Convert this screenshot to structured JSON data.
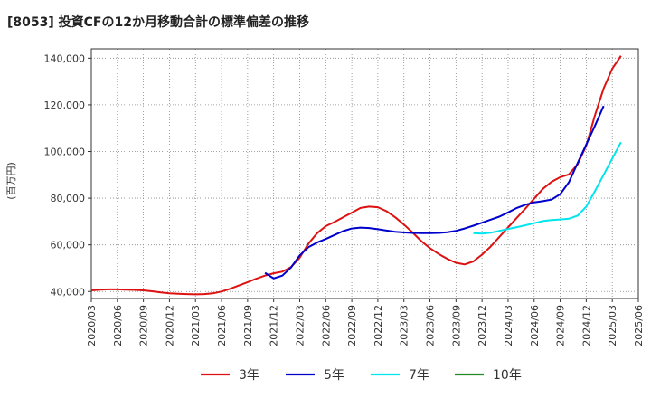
{
  "chart_data": {
    "type": "line",
    "title": "[8053]  投資CFの12か月移動合計の標準偏差の推移",
    "ylabel": "(百万円)",
    "xlabel": "",
    "ylim": [
      37000,
      144000
    ],
    "yticks": [
      40000,
      60000,
      80000,
      100000,
      120000,
      140000
    ],
    "ytick_labels": [
      "40,000",
      "60,000",
      "80,000",
      "100,000",
      "120,000",
      "140,000"
    ],
    "xtick_labels": [
      "2020/03",
      "2020/06",
      "2020/09",
      "2020/12",
      "2021/03",
      "2021/06",
      "2021/09",
      "2021/12",
      "2022/03",
      "2022/06",
      "2022/09",
      "2022/12",
      "2023/03",
      "2023/06",
      "2023/09",
      "2023/12",
      "2024/03",
      "2024/06",
      "2024/09",
      "2024/12",
      "2025/03",
      "2025/06"
    ],
    "x_start": "2020/03",
    "grid": true,
    "legend_position": "bottom",
    "series": [
      {
        "name": "3年",
        "color": "#dd1111",
        "start": "2020/03",
        "values": [
          40500,
          40800,
          40900,
          40900,
          40800,
          40700,
          40500,
          40100,
          39600,
          39200,
          39000,
          38900,
          38800,
          38900,
          39200,
          40000,
          41200,
          42600,
          44000,
          45500,
          46800,
          47800,
          48500,
          50500,
          54500,
          60500,
          65000,
          68000,
          69800,
          71800,
          73800,
          75800,
          76400,
          76100,
          74400,
          71800,
          68700,
          65300,
          61600,
          58600,
          56100,
          54000,
          52300,
          51600,
          52900,
          55800,
          59300,
          63400,
          67500,
          71600,
          75600,
          79800,
          84000,
          87000,
          89000,
          90200,
          94500,
          102500,
          115500,
          127000,
          135500,
          141000
        ]
      },
      {
        "name": "5年",
        "color": "#0000cc",
        "start": "2021/11",
        "values": [
          48000,
          45600,
          46800,
          50300,
          55500,
          59000,
          61000,
          62500,
          64200,
          65900,
          67000,
          67400,
          67200,
          66700,
          66100,
          65600,
          65300,
          65100,
          65000,
          65000,
          65100,
          65400,
          66000,
          67000,
          68200,
          69500,
          70800,
          72100,
          73900,
          75800,
          77200,
          78200,
          78700,
          79400,
          81700,
          86800,
          95000,
          103000,
          111000,
          119500
        ]
      },
      {
        "name": "7年",
        "color": "#00e5ee",
        "start": "2023/11",
        "values": [
          65000,
          64800,
          65200,
          66000,
          66800,
          67600,
          68400,
          69300,
          70200,
          70600,
          70900,
          71200,
          72500,
          76400,
          83000,
          90000,
          97000,
          104000
        ]
      },
      {
        "name": "10年",
        "color": "#228b22",
        "start": "",
        "values": []
      }
    ]
  }
}
